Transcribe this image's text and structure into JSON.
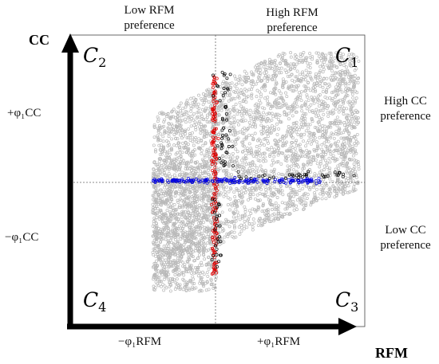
{
  "chart_data": {
    "type": "scatter",
    "xlabel": "RFM",
    "ylabel": "CC",
    "xlim": [
      0,
      1
    ],
    "ylim": [
      0,
      1
    ],
    "grid": false,
    "reference_lines": {
      "x": 0.49,
      "y": 0.5,
      "style": "dotted"
    },
    "top_annotations": [
      "Low RFM\npreference",
      "High RFM\npreference"
    ],
    "right_annotations": [
      "High CC\npreference",
      "Low CC\npreference"
    ],
    "x_ticks": [
      "−φ1RFM",
      "+φ1RFM"
    ],
    "y_ticks": [
      "+φ1CC",
      "−φ1CC"
    ],
    "quadrants": [
      {
        "name": "C",
        "index": "2",
        "position": "top-left"
      },
      {
        "name": "C",
        "index": "1",
        "position": "top-right"
      },
      {
        "name": "C",
        "index": "4",
        "position": "bottom-left"
      },
      {
        "name": "C",
        "index": "3",
        "position": "bottom-right"
      }
    ],
    "series": [
      {
        "color": "#b8b8b8",
        "shape": "open-circle",
        "description_of_distribution": {
          "x_range": [
            0.28,
            0.98
          ],
          "y_range": [
            0.12,
            0.93
          ],
          "count_estimate": 5000
        }
      },
      {
        "color": "#e00000",
        "shape": "open-circle",
        "description_of_distribution": {
          "x": 0.49,
          "y_range": [
            0.18,
            0.86
          ]
        }
      },
      {
        "color": "#0000e0",
        "shape": "open-circle",
        "description_of_distribution": {
          "y": 0.5,
          "x_range": [
            0.28,
            0.85
          ]
        }
      },
      {
        "color": "#000000",
        "shape": "open-circle",
        "description_of_distribution": {
          "scattered_near_axes": true
        }
      }
    ]
  },
  "labels": {
    "top_left": "Low RFM\npreference",
    "top_right": "High RFM\npreference",
    "right_top": "High CC\npreference",
    "right_bottom": "Low CC\npreference",
    "y_axis": "CC",
    "x_axis": "RFM",
    "y_tick_pos": "+φ₁CC",
    "y_tick_neg": "−φ₁CC",
    "x_tick_neg": "−φ₁RFM",
    "x_tick_pos": "+φ₁RFM"
  }
}
